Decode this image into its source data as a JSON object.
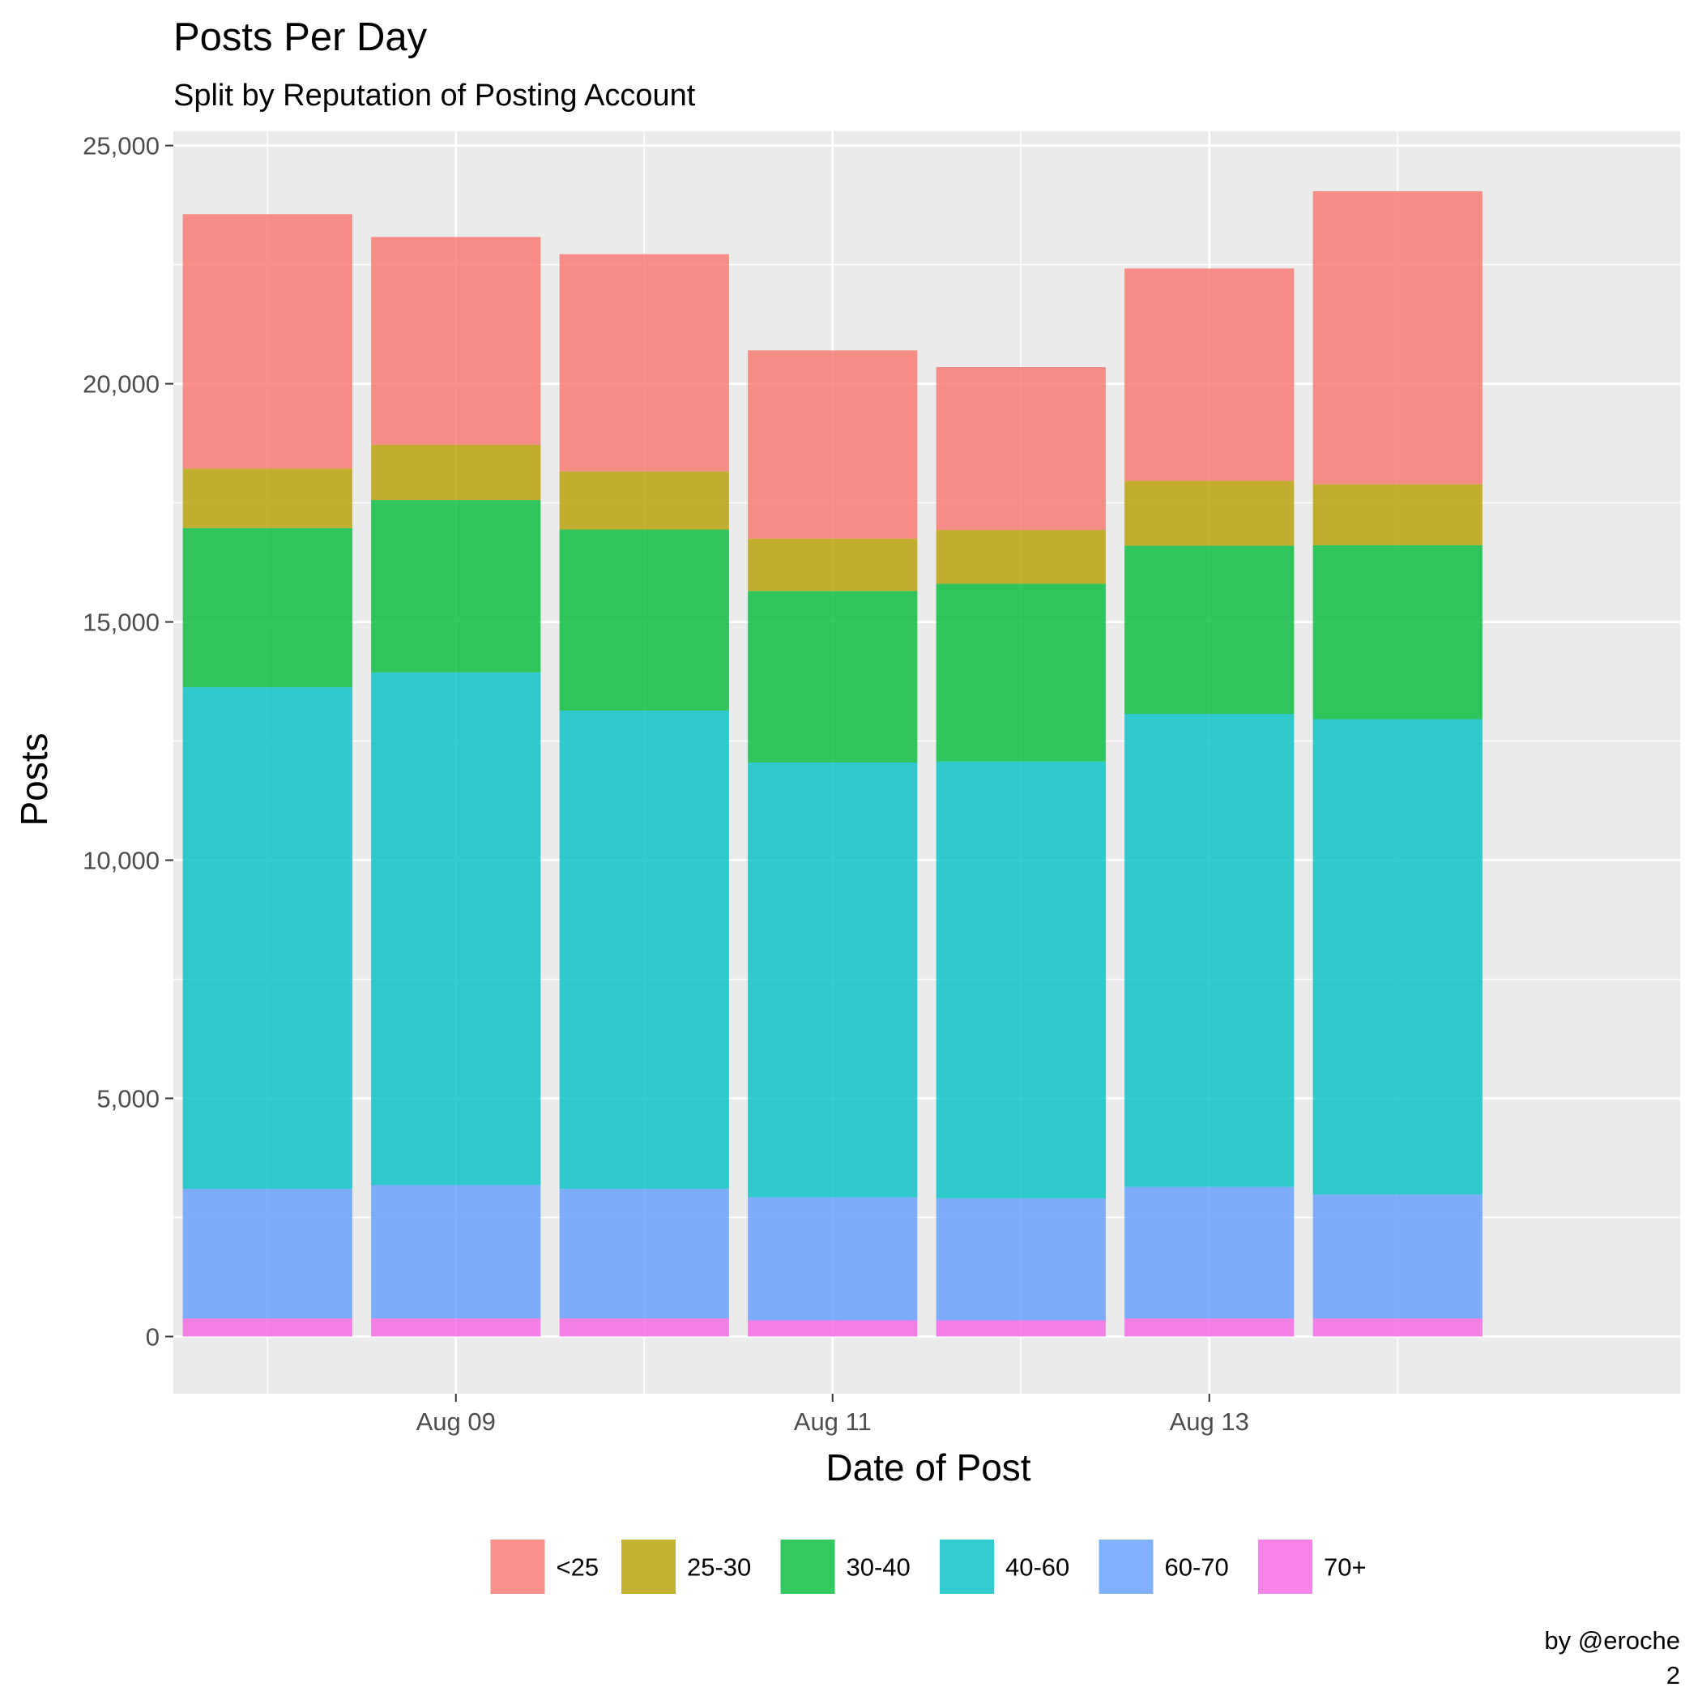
{
  "chart_data": {
    "type": "bar",
    "stacked": true,
    "title": "Posts Per Day",
    "subtitle": "Split by Reputation of Posting Account",
    "xlabel": "Date of Post",
    "ylabel": "Posts",
    "caption": [
      "by @eroche",
      "2"
    ],
    "ylim": [
      -1200,
      25300
    ],
    "xlim": [
      "2017-08-07T12:00",
      "2017-08-15T12:00"
    ],
    "y_ticks": [
      0,
      5000,
      10000,
      15000,
      20000,
      25000
    ],
    "y_tick_labels": [
      "0",
      "5,000",
      "10,000",
      "15,000",
      "20,000",
      "25,000"
    ],
    "x_tick_labels": [
      {
        "label": "Aug 09",
        "date": "2017-08-09"
      },
      {
        "label": "Aug 11",
        "date": "2017-08-11"
      },
      {
        "label": "Aug 13",
        "date": "2017-08-13"
      }
    ],
    "categories": [
      "2017-08-08",
      "2017-08-09",
      "2017-08-10",
      "2017-08-11",
      "2017-08-12",
      "2017-08-13",
      "2017-08-14"
    ],
    "series": [
      {
        "name": "70+",
        "color": "#F564E3",
        "values": [
          380,
          380,
          380,
          340,
          340,
          380,
          380
        ]
      },
      {
        "name": "60-70",
        "color": "#619CFF",
        "values": [
          2720,
          2800,
          2720,
          2580,
          2560,
          2760,
          2600
        ]
      },
      {
        "name": "40-60",
        "color": "#00BFC4",
        "values": [
          10530,
          10760,
          10040,
          9130,
          9170,
          9930,
          9980
        ]
      },
      {
        "name": "30-40",
        "color": "#00BA38",
        "values": [
          3340,
          3620,
          3800,
          3600,
          3730,
          3530,
          3650
        ]
      },
      {
        "name": "25-30",
        "color": "#B79F00",
        "values": [
          1250,
          1160,
          1220,
          1100,
          1130,
          1360,
          1280
        ]
      },
      {
        "name": "<25",
        "color": "#F8766D",
        "values": [
          5340,
          4360,
          4560,
          3950,
          3420,
          4460,
          6150
        ]
      }
    ],
    "legend_order": [
      "<25",
      "25-30",
      "30-40",
      "40-60",
      "60-70",
      "70+"
    ],
    "legend_position": "bottom",
    "grid": true,
    "panel_background": "#EBEBEB",
    "bar_opacity": 0.8
  }
}
